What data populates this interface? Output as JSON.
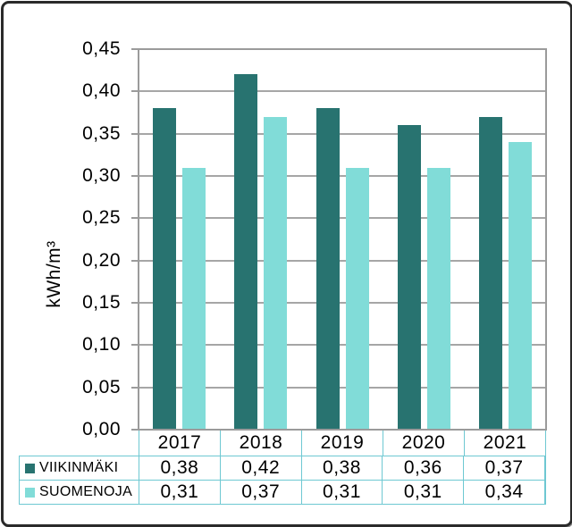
{
  "chart_data": {
    "type": "bar",
    "title": "",
    "ylabel": "kWh/m³",
    "categories": [
      "2017",
      "2018",
      "2019",
      "2020",
      "2021"
    ],
    "series": [
      {
        "name": "VIIKINMÄKI",
        "color": "#287370",
        "values": [
          0.38,
          0.42,
          0.38,
          0.36,
          0.37
        ],
        "value_labels": [
          "0,38",
          "0,42",
          "0,38",
          "0,36",
          "0,37"
        ]
      },
      {
        "name": "SUOMENOJA",
        "color": "#81DCD8",
        "values": [
          0.31,
          0.37,
          0.31,
          0.31,
          0.34
        ],
        "value_labels": [
          "0,31",
          "0,37",
          "0,31",
          "0,31",
          "0,34"
        ]
      }
    ],
    "ylim": [
      0,
      0.45
    ],
    "y_tick_step": 0.05,
    "y_ticks": [
      "0,45",
      "0,40",
      "0,35",
      "0,30",
      "0,25",
      "0,20",
      "0,15",
      "0,10",
      "0,05",
      "0,00"
    ],
    "grid": true,
    "legend_position": "table-left",
    "colors": {
      "gridline": "#a6a6a6",
      "plot_border": "#9b9b9b",
      "table_border": "#6ec8d2",
      "text": "#000000",
      "frame_border": "#2a2a2a"
    }
  }
}
